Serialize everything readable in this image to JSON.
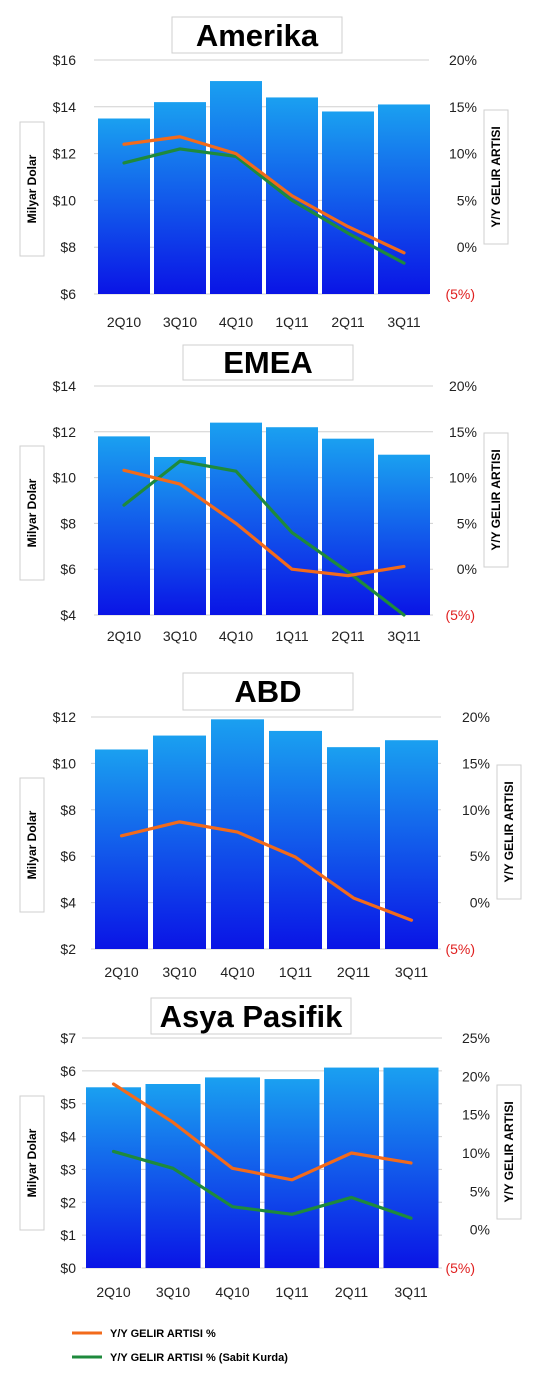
{
  "legend": {
    "revenue_growth": "Y/Y GELIR ARTISI %",
    "revenue_growth_cc": "Y/Y GELIR ARTISI % (Sabit Kurda)"
  },
  "colors": {
    "bar_top": "#1aa0f0",
    "bar_bottom": "#0a14e6",
    "revenue_growth": "#f26a1b",
    "revenue_growth_cc": "#1e8a3c"
  },
  "chart_data": [
    {
      "type": "bar",
      "title": "Amerika",
      "categories": [
        "2Q10",
        "3Q10",
        "4Q10",
        "1Q11",
        "2Q11",
        "3Q11"
      ],
      "ylabel": "Milyar Dolar",
      "y2label": "Y/Y GELIR ARTISI",
      "ylim": [
        6,
        16
      ],
      "y_ticks": [
        "$6",
        "$8",
        "$10",
        "$12",
        "$14",
        "$16"
      ],
      "y2lim": [
        -5,
        20
      ],
      "y2_ticks": [
        "(5%)",
        "0%",
        "5%",
        "10%",
        "15%",
        "20%"
      ],
      "values": [
        13.5,
        14.2,
        15.1,
        14.4,
        13.8,
        14.1
      ],
      "series": [
        {
          "name": "Y/Y GELIR ARTISI %",
          "values": [
            11.0,
            11.8,
            10.0,
            5.5,
            2.2,
            -0.6
          ]
        },
        {
          "name": "Y/Y GELIR ARTISI % (Sabit Kurda)",
          "values": [
            9.0,
            10.5,
            9.7,
            5.0,
            1.5,
            -1.7
          ]
        }
      ]
    },
    {
      "type": "bar",
      "title": "EMEA",
      "categories": [
        "2Q10",
        "3Q10",
        "4Q10",
        "1Q11",
        "2Q11",
        "3Q11"
      ],
      "ylabel": "Milyar Dolar",
      "y2label": "Y/Y GELIR ARTISI",
      "ylim": [
        4,
        14
      ],
      "y_ticks": [
        "$4",
        "$6",
        "$8",
        "$10",
        "$12",
        "$14"
      ],
      "y2lim": [
        -5,
        20
      ],
      "y2_ticks": [
        "(5%)",
        "0%",
        "5%",
        "10%",
        "15%",
        "20%"
      ],
      "values": [
        11.8,
        10.9,
        12.4,
        12.2,
        11.7,
        11.0
      ],
      "series": [
        {
          "name": "Y/Y GELIR ARTISI %",
          "values": [
            10.8,
            9.3,
            5.0,
            0.0,
            -0.7,
            0.3
          ]
        },
        {
          "name": "Y/Y GELIR ARTISI % (Sabit Kurda)",
          "values": [
            7.0,
            11.8,
            10.7,
            4.0,
            -0.3,
            -5.0
          ]
        }
      ]
    },
    {
      "type": "bar",
      "title": "ABD",
      "categories": [
        "2Q10",
        "3Q10",
        "4Q10",
        "1Q11",
        "2Q11",
        "3Q11"
      ],
      "ylabel": "Milyar Dolar",
      "y2label": "Y/Y GELIR ARTISI",
      "ylim": [
        2,
        12
      ],
      "y_ticks": [
        "$2",
        "$4",
        "$6",
        "$8",
        "$10",
        "$12"
      ],
      "y2lim": [
        -5,
        20
      ],
      "y2_ticks": [
        "(5%)",
        "0%",
        "5%",
        "10%",
        "15%",
        "20%"
      ],
      "values": [
        10.6,
        11.2,
        11.9,
        11.4,
        10.7,
        11.0
      ],
      "series": [
        {
          "name": "Y/Y GELIR ARTISI %",
          "values": [
            7.2,
            8.7,
            7.6,
            4.9,
            0.5,
            -1.9
          ]
        }
      ]
    },
    {
      "type": "bar",
      "title": "Asya Pasifik",
      "categories": [
        "2Q10",
        "3Q10",
        "4Q10",
        "1Q11",
        "2Q11",
        "3Q11"
      ],
      "ylabel": "Milyar Dolar",
      "y2label": "Y/Y GELIR ARTISI",
      "ylim": [
        0,
        7
      ],
      "y_ticks": [
        "$0",
        "$1",
        "$2",
        "$3",
        "$4",
        "$5",
        "$6",
        "$7"
      ],
      "y2lim": [
        -5,
        25
      ],
      "y2_ticks": [
        "(5%)",
        "0%",
        "5%",
        "10%",
        "15%",
        "20%",
        "25%"
      ],
      "values": [
        5.5,
        5.6,
        5.8,
        5.75,
        6.1,
        6.1
      ],
      "series": [
        {
          "name": "Y/Y GELIR ARTISI %",
          "values": [
            19.0,
            14.0,
            8.0,
            6.5,
            10.0,
            8.7
          ]
        },
        {
          "name": "Y/Y GELIR ARTISI % (Sabit Kurda)",
          "values": [
            10.2,
            8.0,
            3.0,
            2.0,
            4.2,
            1.5
          ]
        }
      ]
    }
  ]
}
